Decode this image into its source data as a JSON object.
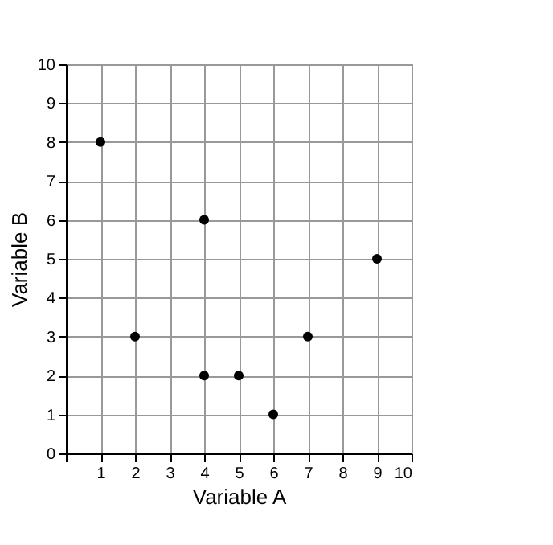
{
  "chart_data": {
    "type": "scatter",
    "xlabel": "Variable A",
    "ylabel": "Variable B",
    "x": [
      1,
      2,
      4,
      4,
      5,
      6,
      7,
      9
    ],
    "series": [
      {
        "color": "#000000",
        "values": [
          8,
          3,
          6,
          2,
          2,
          1,
          3,
          5
        ]
      }
    ],
    "xlim": [
      0,
      10
    ],
    "ylim": [
      0,
      10
    ],
    "xticks": [
      {
        "value": 0,
        "label": null
      },
      1,
      2,
      3,
      4,
      5,
      6,
      7,
      8,
      9,
      10
    ],
    "yticks": [
      0,
      1,
      2,
      3,
      4,
      5,
      6,
      7,
      8,
      9,
      10
    ],
    "grid": true,
    "marker": "circle"
  }
}
